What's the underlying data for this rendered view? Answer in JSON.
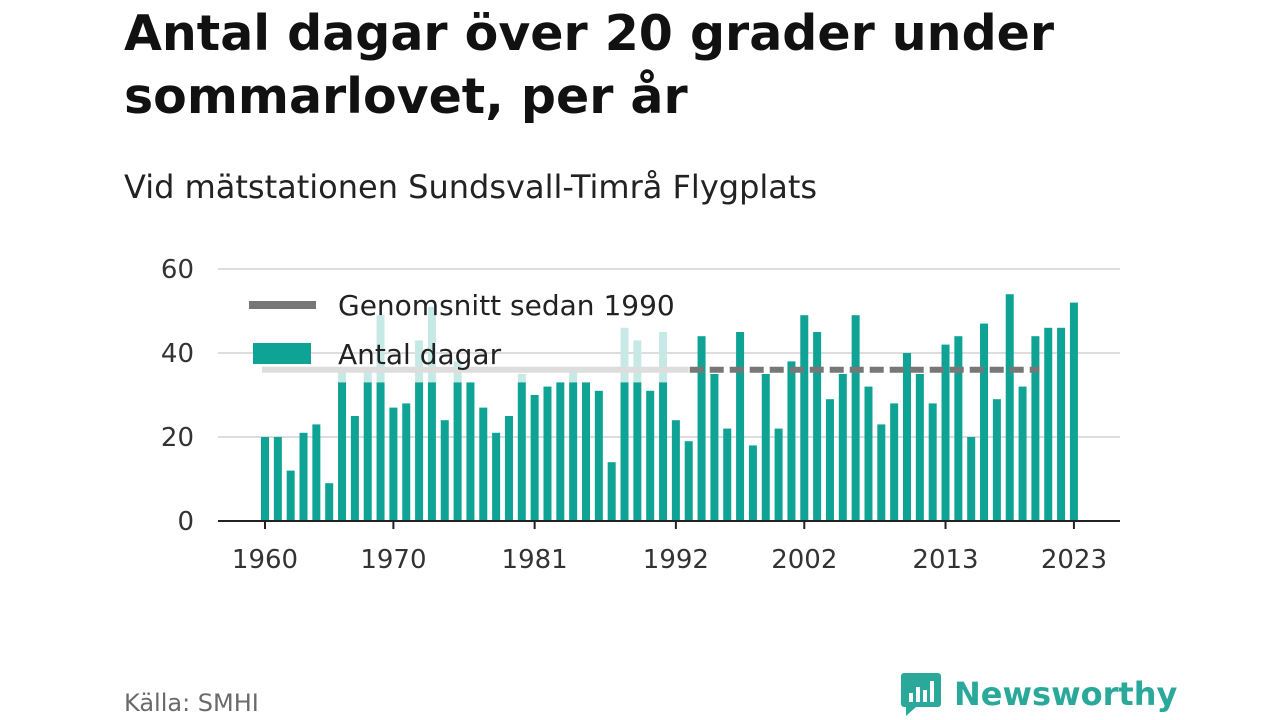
{
  "header": {
    "title": "Antal dagar över 20 grader under sommarlovet, per år",
    "subtitle": "Vid mätstationen Sundsvall-Timrå Flygplats"
  },
  "footer": {
    "source": "Källa: SMHI",
    "brand": "Newsworthy",
    "brand_icon": "bar-chart-speech-bubble-icon"
  },
  "colors": {
    "bar": "#0fa396",
    "bar_faded": "#c7e9e5",
    "average": "#777777",
    "average_faded": "#dddddd",
    "grid": "#dddddd",
    "axis": "#222222",
    "brand": "#2aa99b"
  },
  "chart_data": {
    "type": "bar",
    "x": [
      1960,
      1961,
      1962,
      1963,
      1964,
      1965,
      1966,
      1967,
      1968,
      1969,
      1970,
      1971,
      1972,
      1973,
      1974,
      1975,
      1976,
      1977,
      1978,
      1979,
      1980,
      1981,
      1982,
      1983,
      1984,
      1985,
      1986,
      1987,
      1988,
      1989,
      1990,
      1991,
      1992,
      1993,
      1994,
      1995,
      1996,
      1997,
      1998,
      1999,
      2000,
      2001,
      2002,
      2003,
      2004,
      2005,
      2006,
      2007,
      2008,
      2009,
      2010,
      2011,
      2012,
      2013,
      2014,
      2015,
      2016,
      2017,
      2018,
      2019,
      2020,
      2021,
      2022,
      2023
    ],
    "series": [
      {
        "name": "Antal dagar",
        "values": [
          20,
          20,
          12,
          21,
          23,
          9,
          36,
          25,
          36,
          49,
          27,
          28,
          43,
          51,
          24,
          38,
          33,
          27,
          21,
          25,
          35,
          30,
          32,
          33,
          36,
          33,
          31,
          14,
          46,
          43,
          31,
          45,
          24,
          19,
          44,
          35,
          22,
          45,
          18,
          35,
          22,
          38,
          49,
          45,
          29,
          35,
          49,
          32,
          23,
          28,
          40,
          35,
          28,
          42,
          44,
          20,
          47,
          29,
          54,
          32,
          44,
          46,
          46,
          52
        ]
      }
    ],
    "average": {
      "name": "Genomsnitt sedan 1990",
      "value": 36,
      "from": 1990,
      "to": 2023
    },
    "legend": [
      "Genomsnitt sedan 1990",
      "Antal dagar"
    ],
    "legend_position": "top-left",
    "tick_labels": [
      "1960",
      "1970",
      "1981",
      "1992",
      "2002",
      "2013",
      "2023"
    ],
    "tick_years": [
      1960,
      1970,
      1981,
      1992,
      2002,
      2013,
      2023
    ],
    "ylim": [
      0,
      60
    ],
    "yticks": [
      0,
      20,
      40,
      60
    ],
    "grid": true
  }
}
